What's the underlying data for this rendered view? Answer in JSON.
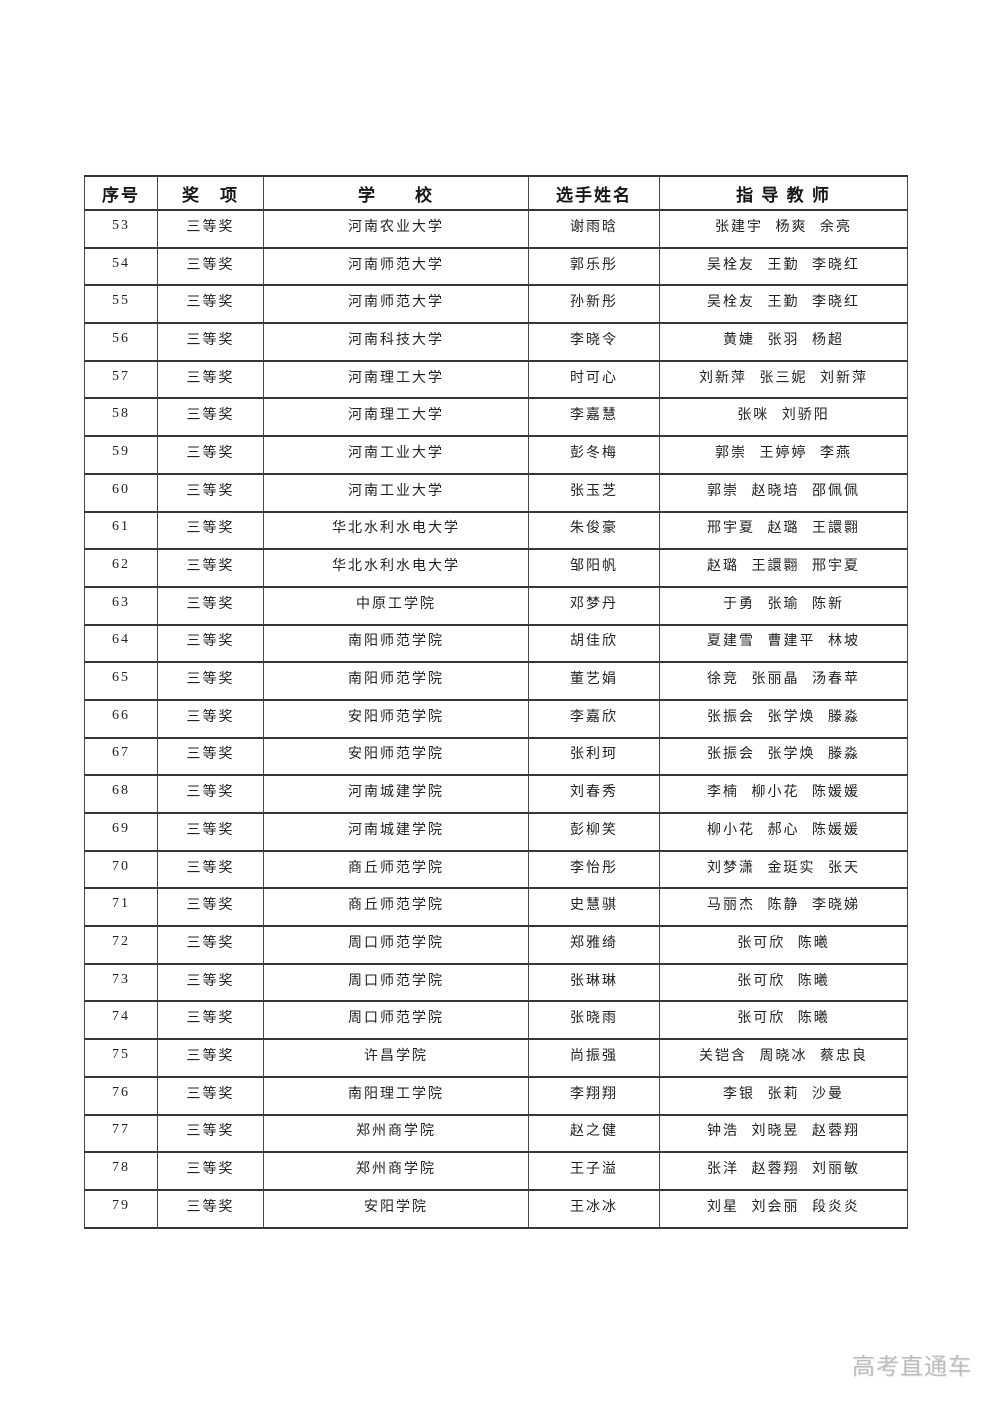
{
  "page": {
    "watermark": "高考直通车"
  },
  "table": {
    "headers": [
      "序号",
      "奖　项",
      "学　　校",
      "选手姓名",
      "指 导 教 师"
    ],
    "rows": [
      {
        "serial": "53",
        "award": "三等奖",
        "school": "河南农业大学",
        "contestant": "谢雨晗",
        "teachers": "张建宇 杨爽 余亮"
      },
      {
        "serial": "54",
        "award": "三等奖",
        "school": "河南师范大学",
        "contestant": "郭乐彤",
        "teachers": "吴栓友 王勤 李晓红"
      },
      {
        "serial": "55",
        "award": "三等奖",
        "school": "河南师范大学",
        "contestant": "孙新彤",
        "teachers": "吴栓友 王勤 李晓红"
      },
      {
        "serial": "56",
        "award": "三等奖",
        "school": "河南科技大学",
        "contestant": "李晓令",
        "teachers": "黄婕 张羽 杨超"
      },
      {
        "serial": "57",
        "award": "三等奖",
        "school": "河南理工大学",
        "contestant": "时可心",
        "teachers": "刘新萍 张三妮 刘新萍"
      },
      {
        "serial": "58",
        "award": "三等奖",
        "school": "河南理工大学",
        "contestant": "李嘉慧",
        "teachers": "张咪 刘骄阳"
      },
      {
        "serial": "59",
        "award": "三等奖",
        "school": "河南工业大学",
        "contestant": "彭冬梅",
        "teachers": "郭崇 王婷婷 李燕"
      },
      {
        "serial": "60",
        "award": "三等奖",
        "school": "河南工业大学",
        "contestant": "张玉芝",
        "teachers": "郭崇 赵晓培 邵佩佩"
      },
      {
        "serial": "61",
        "award": "三等奖",
        "school": "华北水利水电大学",
        "contestant": "朱俊豪",
        "teachers": "邢宇夏 赵璐 王譞翾"
      },
      {
        "serial": "62",
        "award": "三等奖",
        "school": "华北水利水电大学",
        "contestant": "邹阳帆",
        "teachers": "赵璐 王譞翾 邢宇夏"
      },
      {
        "serial": "63",
        "award": "三等奖",
        "school": "中原工学院",
        "contestant": "邓梦丹",
        "teachers": "于勇 张瑜 陈新"
      },
      {
        "serial": "64",
        "award": "三等奖",
        "school": "南阳师范学院",
        "contestant": "胡佳欣",
        "teachers": "夏建雪 曹建平 林坡"
      },
      {
        "serial": "65",
        "award": "三等奖",
        "school": "南阳师范学院",
        "contestant": "董艺娟",
        "teachers": "徐竞 张丽晶 汤春苹"
      },
      {
        "serial": "66",
        "award": "三等奖",
        "school": "安阳师范学院",
        "contestant": "李嘉欣",
        "teachers": "张振会 张学焕 滕淼"
      },
      {
        "serial": "67",
        "award": "三等奖",
        "school": "安阳师范学院",
        "contestant": "张利珂",
        "teachers": "张振会 张学焕 滕淼"
      },
      {
        "serial": "68",
        "award": "三等奖",
        "school": "河南城建学院",
        "contestant": "刘春秀",
        "teachers": "李楠 柳小花 陈媛媛"
      },
      {
        "serial": "69",
        "award": "三等奖",
        "school": "河南城建学院",
        "contestant": "彭柳笑",
        "teachers": "柳小花 郝心 陈媛媛"
      },
      {
        "serial": "70",
        "award": "三等奖",
        "school": "商丘师范学院",
        "contestant": "李怡彤",
        "teachers": "刘梦潇 金珽实 张天"
      },
      {
        "serial": "71",
        "award": "三等奖",
        "school": "商丘师范学院",
        "contestant": "史慧骐",
        "teachers": "马丽杰 陈静 李晓娣"
      },
      {
        "serial": "72",
        "award": "三等奖",
        "school": "周口师范学院",
        "contestant": "郑雅绮",
        "teachers": "张可欣 陈曦"
      },
      {
        "serial": "73",
        "award": "三等奖",
        "school": "周口师范学院",
        "contestant": "张琳琳",
        "teachers": "张可欣 陈曦"
      },
      {
        "serial": "74",
        "award": "三等奖",
        "school": "周口师范学院",
        "contestant": "张晓雨",
        "teachers": "张可欣 陈曦"
      },
      {
        "serial": "75",
        "award": "三等奖",
        "school": "许昌学院",
        "contestant": "尚振强",
        "teachers": "关铠含 周晓冰 蔡忠良"
      },
      {
        "serial": "76",
        "award": "三等奖",
        "school": "南阳理工学院",
        "contestant": "李翔翔",
        "teachers": "李银 张莉 沙曼"
      },
      {
        "serial": "77",
        "award": "三等奖",
        "school": "郑州商学院",
        "contestant": "赵之健",
        "teachers": "钟浩 刘晓昱 赵蓉翔"
      },
      {
        "serial": "78",
        "award": "三等奖",
        "school": "郑州商学院",
        "contestant": "王子溢",
        "teachers": "张洋 赵蓉翔 刘丽敏"
      },
      {
        "serial": "79",
        "award": "三等奖",
        "school": "安阳学院",
        "contestant": "王冰冰",
        "teachers": "刘星 刘会丽 段炎炎"
      }
    ]
  }
}
